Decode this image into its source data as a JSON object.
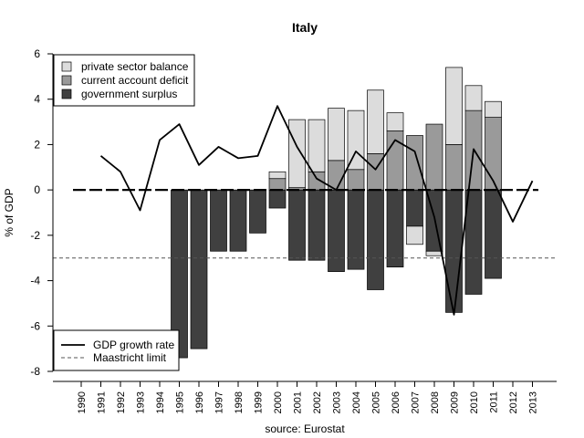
{
  "chart_data": {
    "type": "bar",
    "title": "Italy",
    "ylabel": "% of GDP",
    "xlabel": "source: Eurostat",
    "ylim": [
      -8,
      6
    ],
    "yticks": [
      -8,
      -6,
      -4,
      -2,
      0,
      2,
      4,
      6
    ],
    "categories": [
      "1990",
      "1991",
      "1992",
      "1993",
      "1994",
      "1995",
      "1996",
      "1997",
      "1998",
      "1999",
      "2000",
      "2001",
      "2002",
      "2003",
      "2004",
      "2005",
      "2006",
      "2007",
      "2008",
      "2009",
      "2010",
      "2011",
      "2012",
      "2013"
    ],
    "series": [
      {
        "name": "government surplus",
        "kind": "bar",
        "color": "#404040",
        "values": [
          null,
          null,
          null,
          null,
          null,
          -7.4,
          -7.0,
          -2.7,
          -2.7,
          -1.9,
          -0.8,
          -3.1,
          -3.1,
          -3.6,
          -3.5,
          -4.4,
          -3.4,
          -1.6,
          -2.7,
          -5.4,
          -4.6,
          -3.9,
          null,
          null
        ]
      },
      {
        "name": "current account deficit",
        "kind": "bar",
        "color": "#9a9a9a",
        "values": [
          null,
          null,
          null,
          null,
          null,
          null,
          null,
          null,
          null,
          null,
          0.5,
          0.1,
          0.8,
          1.3,
          0.9,
          1.6,
          2.6,
          2.4,
          2.9,
          2.0,
          3.5,
          3.2,
          null,
          null
        ]
      },
      {
        "name": "private sector balance",
        "kind": "bar",
        "color": "#dcdcdc",
        "values": [
          null,
          null,
          null,
          null,
          null,
          null,
          null,
          null,
          null,
          null,
          0.3,
          3.0,
          2.3,
          2.3,
          2.6,
          2.8,
          0.8,
          -0.8,
          -0.2,
          3.4,
          1.1,
          0.7,
          null,
          null
        ]
      },
      {
        "name": "GDP growth rate",
        "kind": "line",
        "color": "#000000",
        "values": [
          null,
          1.5,
          0.8,
          -0.9,
          2.2,
          2.9,
          1.1,
          1.9,
          1.4,
          1.5,
          3.7,
          1.9,
          0.5,
          0.0,
          1.7,
          0.9,
          2.2,
          1.7,
          -1.2,
          -5.5,
          1.8,
          0.4,
          -1.4,
          0.4
        ]
      },
      {
        "name": "Maastricht limit",
        "kind": "hline",
        "value": -3
      }
    ],
    "legend_top": [
      "private sector balance",
      "current account deficit",
      "government surplus"
    ],
    "legend_top_position": "top-left",
    "legend_bottom": [
      "GDP growth rate",
      "Maastricht limit"
    ],
    "legend_bottom_position": "bottom-left",
    "grid": false
  }
}
